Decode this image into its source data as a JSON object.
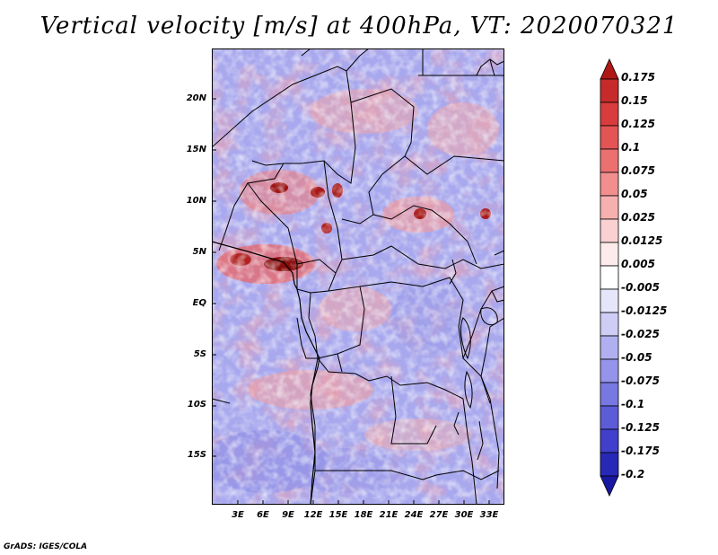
{
  "title": "Vertical velocity [m/s] at 400hPa, VT: 2020070321",
  "footer": "GrADS: IGES/COLA",
  "y_axis_labels": [
    "20N",
    "15N",
    "10N",
    "5N",
    "EQ",
    "5S",
    "10S",
    "15S"
  ],
  "x_axis_labels": [
    "3E",
    "6E",
    "9E",
    "12E",
    "15E",
    "18E",
    "21E",
    "24E",
    "27E",
    "30E",
    "33E"
  ],
  "colorbar": {
    "labels": [
      "0.175",
      "0.15",
      "0.125",
      "0.1",
      "0.075",
      "0.05",
      "0.025",
      "0.0125",
      "0.005",
      "-0.005",
      "-0.0125",
      "-0.025",
      "-0.05",
      "-0.075",
      "-0.1",
      "-0.125",
      "-0.175",
      "-0.2"
    ],
    "colors": [
      "#b01818",
      "#c62a2a",
      "#d83c3c",
      "#e45454",
      "#ec7070",
      "#f28e8e",
      "#f7b0b0",
      "#fad0d0",
      "#fdebeb",
      "#ffffff",
      "#e6e6fb",
      "#cdcdf6",
      "#b0b0f0",
      "#9494ea",
      "#7878e2",
      "#5c5cd8",
      "#4040cc",
      "#2828b8",
      "#1818a0"
    ]
  },
  "colors": {
    "positive": "#e8787a",
    "negative": "#8a8ae8",
    "neutral": "#f2f0fa",
    "border": "#000000"
  }
}
